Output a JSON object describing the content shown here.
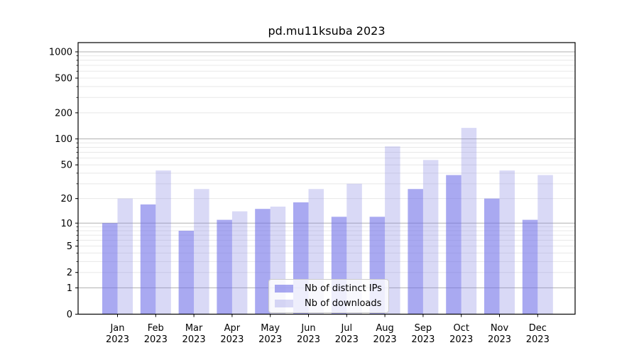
{
  "figure": {
    "background": "#ffffff",
    "axis_color": "#000000",
    "major_grid_color": "#b0b0b0",
    "minor_grid_color": "#e8e8e8"
  },
  "chart_data": {
    "type": "bar",
    "title": "pd.mu11ksuba 2023",
    "categories": [
      "Jan 2023",
      "Feb 2023",
      "Mar 2023",
      "Apr 2023",
      "May 2023",
      "Jun 2023",
      "Jul 2023",
      "Aug 2023",
      "Sep 2023",
      "Oct 2023",
      "Nov 2023",
      "Dec 2023"
    ],
    "category_months": [
      "Jan",
      "Feb",
      "Mar",
      "Apr",
      "May",
      "Jun",
      "Jul",
      "Aug",
      "Sep",
      "Oct",
      "Nov",
      "Dec"
    ],
    "category_year": "2023",
    "series": [
      {
        "name": "Nb of distinct IPs",
        "color_on_white_hex": "#a9a9f1",
        "fill": "rgba(112,112,232,0.6)",
        "values": [
          10,
          17,
          8,
          11,
          15,
          18,
          12,
          12,
          26,
          38,
          20,
          11
        ]
      },
      {
        "name": "Nb of downloads",
        "color_on_white_hex": "#d9d9f6",
        "fill": "rgba(128,128,225,0.3)",
        "values": [
          20,
          43,
          26,
          14,
          16,
          26,
          30,
          82,
          57,
          134,
          43,
          38
        ]
      }
    ],
    "xlabel": "",
    "ylabel": "",
    "yscale": "log1p",
    "yticks": [
      0,
      1,
      2,
      5,
      10,
      20,
      50,
      100,
      200,
      500,
      1000
    ],
    "ylim": [
      0,
      1275
    ],
    "grid": "on",
    "legend_position": "lower center, inside axes"
  }
}
